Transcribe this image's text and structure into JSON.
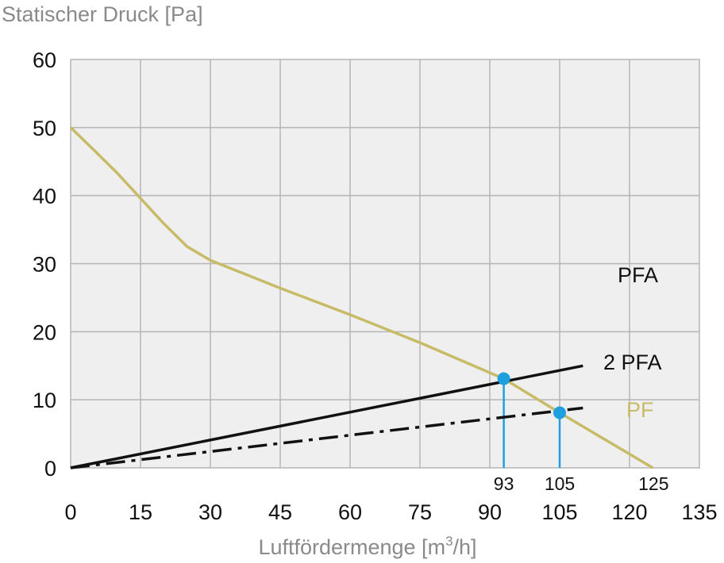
{
  "chart_data": {
    "type": "line",
    "ylabel": "Statischer Druck [Pa]",
    "xlabel_main": "Luftfördermenge [m",
    "xlabel_sup": "3",
    "xlabel_tail": "/h]",
    "xlim": [
      0,
      135
    ],
    "ylim": [
      0,
      60
    ],
    "x_ticks": [
      "0",
      "15",
      "30",
      "45",
      "60",
      "75",
      "90",
      "105",
      "120",
      "135"
    ],
    "y_ticks": [
      "0",
      "10",
      "20",
      "30",
      "40",
      "50",
      "60"
    ],
    "grid": true,
    "series": [
      {
        "name": "PF",
        "color": "#c8bb68",
        "style": "solid",
        "x": [
          0,
          5,
          10,
          15,
          20,
          25,
          30,
          45,
          60,
          75,
          93,
          105,
          125
        ],
        "y": [
          50,
          46.7,
          43.3,
          39.6,
          35.9,
          32.5,
          30.5,
          26.4,
          22.5,
          18.4,
          13.1,
          8.1,
          0
        ]
      },
      {
        "name": "2 PFA",
        "color": "#111111",
        "style": "solid",
        "x": [
          0,
          110
        ],
        "y": [
          0,
          15
        ]
      },
      {
        "name": "PFA",
        "color": "#111111",
        "style": "dashdot",
        "x": [
          0,
          110
        ],
        "y": [
          0,
          8.8
        ]
      }
    ],
    "operating_points": [
      {
        "x": 93,
        "y": 13.1,
        "label": "93",
        "color": "#1ea0e0"
      },
      {
        "x": 105,
        "y": 8.1,
        "label": "105",
        "color": "#1ea0e0"
      }
    ],
    "x_intercept_label": {
      "x": 125,
      "label": "125"
    },
    "colors": {
      "plot_background": "#efefef",
      "grid": "#b5b5b5",
      "marker": "#1ea0e0"
    }
  }
}
